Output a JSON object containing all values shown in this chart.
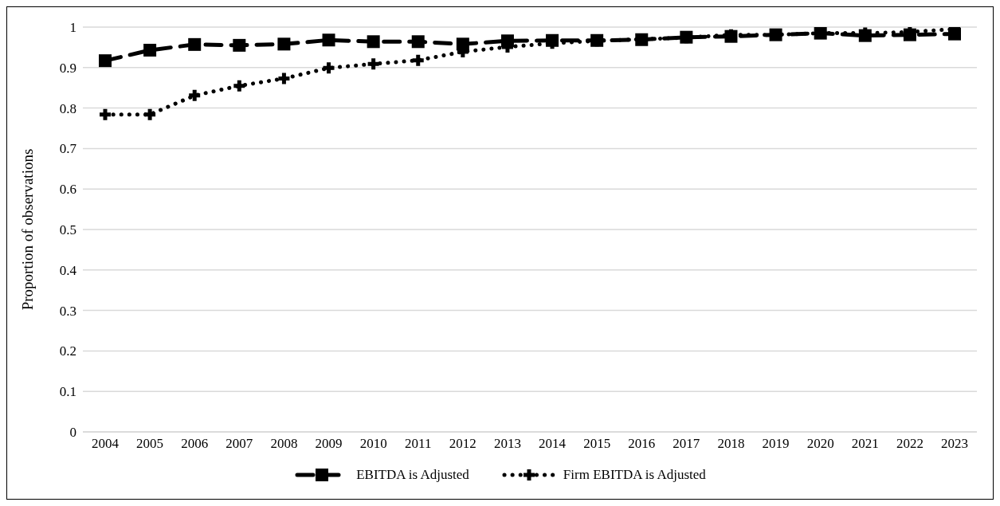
{
  "chart_data": {
    "type": "line",
    "ylabel": "Proportion of observations",
    "categories": [
      "2004",
      "2005",
      "2006",
      "2007",
      "2008",
      "2009",
      "2010",
      "2011",
      "2012",
      "2013",
      "2014",
      "2015",
      "2016",
      "2017",
      "2018",
      "2019",
      "2020",
      "2021",
      "2022",
      "2023"
    ],
    "series": [
      {
        "name": "EBITDA is Adjusted",
        "color": "#000000",
        "marker": "square",
        "line_style": "dashed",
        "values": [
          0.917,
          0.943,
          0.957,
          0.955,
          0.958,
          0.968,
          0.964,
          0.964,
          0.958,
          0.966,
          0.967,
          0.967,
          0.969,
          0.975,
          0.977,
          0.981,
          0.985,
          0.979,
          0.981,
          0.983
        ]
      },
      {
        "name": "Firm EBITDA is Adjusted",
        "color": "#000000",
        "marker": "cross",
        "line_style": "dotted",
        "values": [
          0.784,
          0.784,
          0.831,
          0.855,
          0.873,
          0.899,
          0.909,
          0.918,
          0.939,
          0.951,
          0.96,
          0.966,
          0.97,
          0.974,
          0.981,
          0.981,
          0.985,
          0.985,
          0.988,
          0.995
        ]
      }
    ],
    "ylim": [
      0,
      1
    ],
    "yticks": [
      0,
      0.1,
      0.2,
      0.3,
      0.4,
      0.5,
      0.6,
      0.7,
      0.8,
      0.9,
      1
    ],
    "grid": "y",
    "legend": "bottom"
  }
}
